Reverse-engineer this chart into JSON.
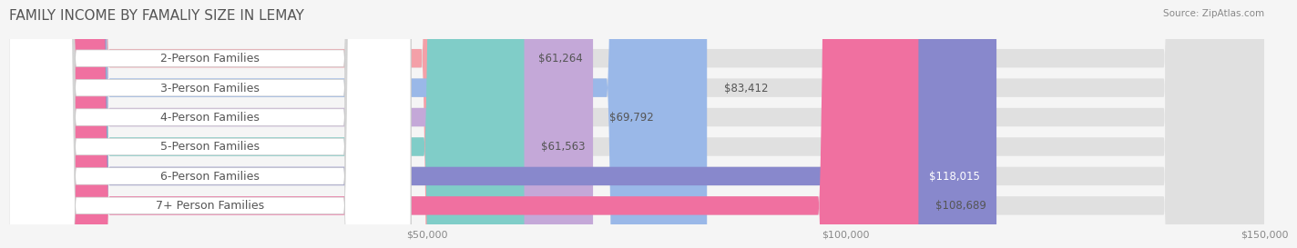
{
  "title": "FAMILY INCOME BY FAMALIY SIZE IN LEMAY",
  "source": "Source: ZipAtlas.com",
  "categories": [
    "2-Person Families",
    "3-Person Families",
    "4-Person Families",
    "5-Person Families",
    "6-Person Families",
    "7+ Person Families"
  ],
  "values": [
    61264,
    83412,
    69792,
    61563,
    118015,
    108689
  ],
  "bar_colors": [
    "#f4a0a8",
    "#9ab8e8",
    "#c4a8d8",
    "#80cdc8",
    "#8888cc",
    "#f070a0"
  ],
  "label_colors": [
    "#555555",
    "#555555",
    "#555555",
    "#555555",
    "#ffffff",
    "#555555"
  ],
  "label_inside": [
    false,
    false,
    false,
    false,
    true,
    false
  ],
  "value_labels": [
    "$61,264",
    "$83,412",
    "$69,792",
    "$61,563",
    "$118,015",
    "$108,689"
  ],
  "background_color": "#f5f5f5",
  "bar_background": "#e8e8e8",
  "xlim": [
    0,
    150000
  ],
  "xticks": [
    0,
    50000,
    100000,
    150000
  ],
  "xtick_labels": [
    "",
    "$50,000",
    "$100,000",
    "$150,000"
  ],
  "bar_height": 0.62,
  "title_fontsize": 11,
  "label_fontsize": 9,
  "value_fontsize": 8.5,
  "tick_fontsize": 8
}
